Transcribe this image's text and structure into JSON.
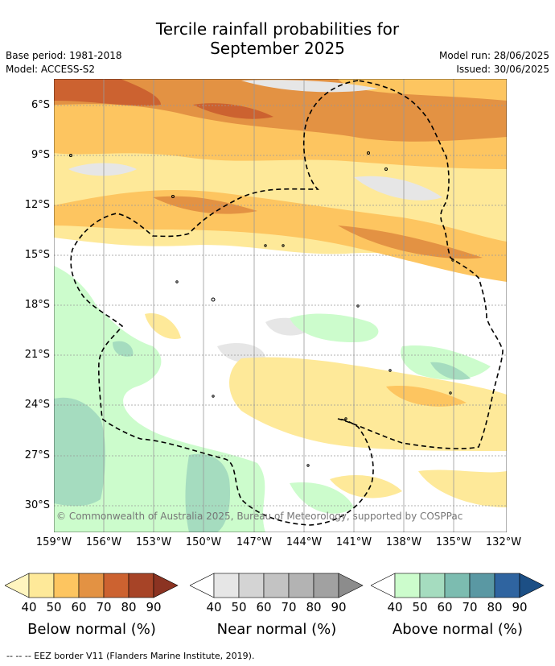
{
  "header": {
    "title_line1": "Tercile rainfall probabilities for",
    "title_line2": "September 2025",
    "base_period": "Base period: 1981-2018",
    "model": "Model: ACCESS-S2",
    "model_run": "Model run: 28/06/2025",
    "issued": "Issued: 30/06/2025"
  },
  "map": {
    "lat_labels": [
      "6°S",
      "9°S",
      "12°S",
      "15°S",
      "18°S",
      "21°S",
      "24°S",
      "27°S",
      "30°S"
    ],
    "lon_labels": [
      "159°W",
      "156°W",
      "153°W",
      "150°W",
      "147°W",
      "144°W",
      "141°W",
      "138°W",
      "135°W",
      "132°W"
    ],
    "copyright": "© Commonwealth of Australia 2025, Bureau of Meteorology, supported by COSPPac",
    "colors": {
      "below_40": "#fee999",
      "below_50": "#fdc560",
      "below_60": "#e39243",
      "below_70": "#cc6230",
      "below_80": "#a74427",
      "near_40": "#e6e6e6",
      "near_50": "#d4d4d4",
      "near_60": "#c3c3c3",
      "above_40": "#ccfccc",
      "above_50": "#a5dcbf",
      "above_60": "#7cbcb0"
    }
  },
  "legends": [
    {
      "title": "Below normal (%)",
      "ticks": [
        "40",
        "50",
        "60",
        "70",
        "80",
        "90"
      ],
      "colors": [
        "#fff5bf",
        "#fedf83",
        "#fdc560",
        "#e39243",
        "#cc6230",
        "#a74427",
        "#8b3322"
      ]
    },
    {
      "title": "Near normal (%)",
      "ticks": [
        "40",
        "50",
        "60",
        "70",
        "80",
        "90"
      ],
      "colors": [
        "#ffffff",
        "#e6e6e6",
        "#d4d4d4",
        "#c3c3c3",
        "#b3b3b3",
        "#a1a1a1",
        "#8c8c8c"
      ]
    },
    {
      "title": "Above normal (%)",
      "ticks": [
        "40",
        "50",
        "60",
        "70",
        "80",
        "90"
      ],
      "colors": [
        "#ffffff",
        "#ccfccc",
        "#a5dcbf",
        "#7cbcb0",
        "#5a98a3",
        "#2f64a0",
        "#1c4f85"
      ]
    }
  ],
  "footnote": "--  --  -- EEZ border V11 (Flanders Marine Institute, 2019)."
}
